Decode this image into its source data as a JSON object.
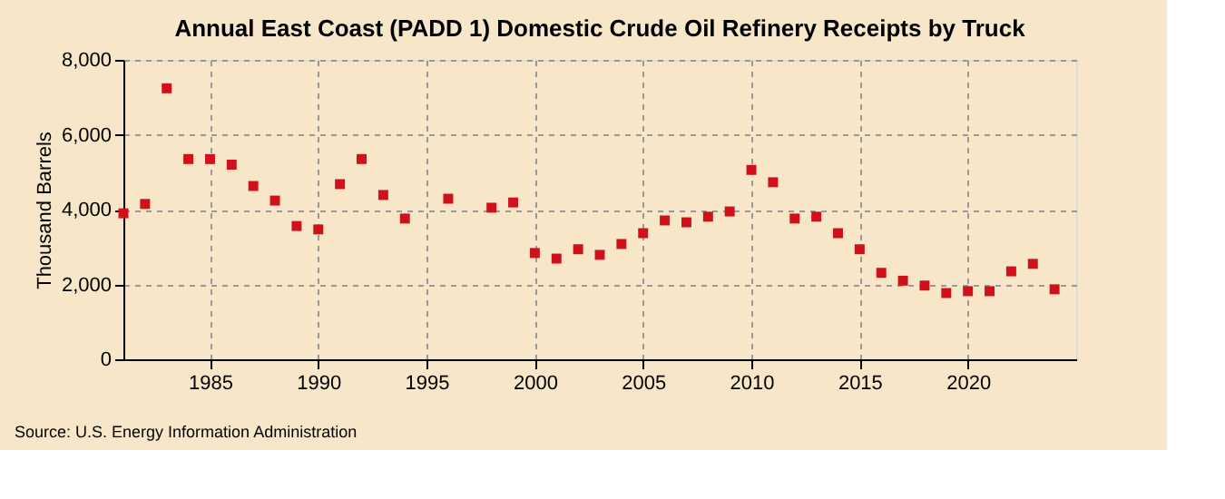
{
  "chart_data": {
    "type": "scatter",
    "title": "Annual East Coast (PADD 1) Domestic Crude Oil Refinery Receipts by Truck",
    "ylabel": "Thousand Barrels",
    "x": [
      1981,
      1982,
      1983,
      1984,
      1985,
      1986,
      1987,
      1988,
      1989,
      1990,
      1991,
      1992,
      1993,
      1994,
      1996,
      1998,
      1999,
      2000,
      2001,
      2002,
      2003,
      2004,
      2005,
      2006,
      2007,
      2008,
      2009,
      2010,
      2011,
      2012,
      2013,
      2014,
      2015,
      2016,
      2017,
      2018,
      2019,
      2020,
      2021,
      2022,
      2023,
      2024
    ],
    "series": [
      {
        "color": "#d0111b",
        "values": [
          3900,
          4150,
          7240,
          5350,
          5350,
          5200,
          4630,
          4240,
          3560,
          3470,
          4680,
          5350,
          4390,
          3760,
          4290,
          4050,
          4190,
          2840,
          2690,
          2940,
          2790,
          3080,
          3370,
          3710,
          3660,
          3810,
          3950,
          5060,
          4730,
          3760,
          3810,
          3370,
          2940,
          2310,
          2100,
          1970,
          1770,
          1820,
          1820,
          2350,
          2550,
          1870
        ]
      }
    ],
    "xlim": [
      1981,
      2025
    ],
    "xticks": [
      1985,
      1990,
      1995,
      2000,
      2005,
      2010,
      2015,
      2020
    ],
    "ylim": [
      0,
      8000
    ],
    "yticks": [
      0,
      {
        "value": 2000,
        "label": "2,000"
      },
      {
        "value": 4000,
        "label": "4,000"
      },
      {
        "value": 6000,
        "label": "6,000"
      },
      {
        "value": 8000,
        "label": "8,000"
      }
    ],
    "grid": true,
    "marker": "square",
    "legend": false,
    "annotations": [
      "Source: U.S. Energy Information Administration"
    ]
  }
}
